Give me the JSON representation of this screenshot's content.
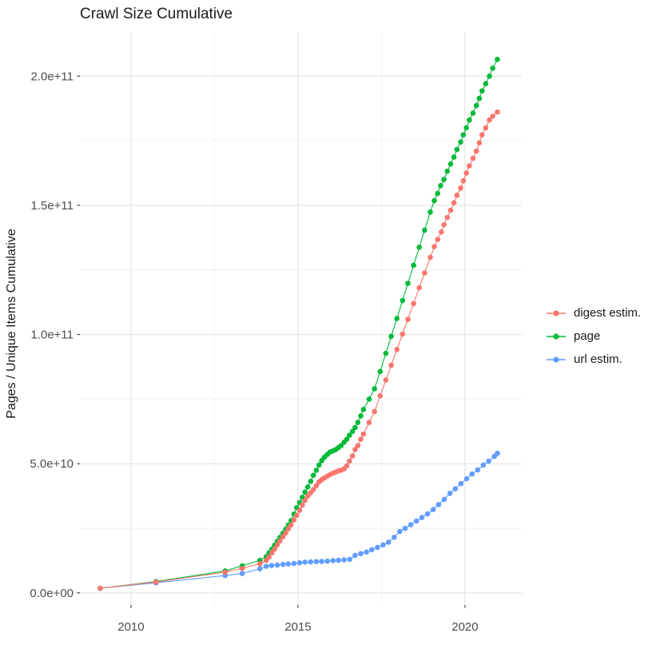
{
  "chart_data": {
    "type": "line",
    "title": "Crawl Size Cumulative",
    "xlabel": "",
    "ylabel": "Pages / Unique Items Cumulative",
    "legend_position": "right",
    "grid": true,
    "xlim": [
      2008.47,
      2021.7
    ],
    "ylim": [
      -4700000000,
      217100000000
    ],
    "x_ticks": [
      {
        "label": "2010",
        "value": 2010
      },
      {
        "label": "2015",
        "value": 2015
      },
      {
        "label": "2020",
        "value": 2020
      }
    ],
    "x_minor": [
      2012.5,
      2017.5
    ],
    "y_ticks": [
      {
        "label": "0.0e+00",
        "value": 0
      },
      {
        "label": "5.0e+10",
        "value": 50000000000.0
      },
      {
        "label": "1.0e+11",
        "value": 100000000000.0
      },
      {
        "label": "1.5e+11",
        "value": 150000000000.0
      },
      {
        "label": "2.0e+11",
        "value": 200000000000.0
      }
    ],
    "y_minor": [
      25000000000.0,
      75000000000.0,
      125000000000.0,
      175000000000.0
    ],
    "colors": {
      "grid_major": "#e4e4e4",
      "grid_minor": "#f0f0f0",
      "tick_mark": "#333333",
      "tick_label": "#4d4d4d",
      "text": "#1a1a1a"
    },
    "series": [
      {
        "name": "digest estim.",
        "color": "#F8766D",
        "points": [
          [
            2009.08,
            1800000000.0
          ],
          [
            2010.75,
            4200000000.0
          ],
          [
            2012.82,
            8000000000.0
          ],
          [
            2013.33,
            9500000000.0
          ],
          [
            2013.86,
            11300000000.0
          ],
          [
            2014.05,
            12600000000.0
          ],
          [
            2014.13,
            13900000000.0
          ],
          [
            2014.22,
            15500000000.0
          ],
          [
            2014.3,
            17000000000.0
          ],
          [
            2014.38,
            18600000000.0
          ],
          [
            2014.46,
            20100000000.0
          ],
          [
            2014.55,
            21700000000.0
          ],
          [
            2014.63,
            23200000000.0
          ],
          [
            2014.71,
            24800000000.0
          ],
          [
            2014.79,
            26300000000.0
          ],
          [
            2014.88,
            28200000000.0
          ],
          [
            2014.96,
            30000000000.0
          ],
          [
            2015.05,
            32000000000.0
          ],
          [
            2015.13,
            34000000000.0
          ],
          [
            2015.21,
            35800000000.0
          ],
          [
            2015.29,
            37500000000.0
          ],
          [
            2015.38,
            38800000000.0
          ],
          [
            2015.46,
            40000000000.0
          ],
          [
            2015.55,
            41500000000.0
          ],
          [
            2015.63,
            43000000000.0
          ],
          [
            2015.71,
            43800000000.0
          ],
          [
            2015.79,
            44500000000.0
          ],
          [
            2015.88,
            45200000000.0
          ],
          [
            2015.96,
            45800000000.0
          ],
          [
            2016.05,
            46300000000.0
          ],
          [
            2016.13,
            46800000000.0
          ],
          [
            2016.21,
            47200000000.0
          ],
          [
            2016.29,
            47500000000.0
          ],
          [
            2016.38,
            48000000000.0
          ],
          [
            2016.46,
            49200000000.0
          ],
          [
            2016.54,
            51000000000.0
          ],
          [
            2016.63,
            53000000000.0
          ],
          [
            2016.71,
            55500000000.0
          ],
          [
            2016.79,
            57000000000.0
          ],
          [
            2016.88,
            59500000000.0
          ],
          [
            2016.96,
            61500000000.0
          ],
          [
            2017.13,
            66000000000.0
          ],
          [
            2017.29,
            70200000000.0
          ],
          [
            2017.46,
            76300000000.0
          ],
          [
            2017.63,
            82400000000.0
          ],
          [
            2017.79,
            88100000000.0
          ],
          [
            2017.96,
            94200000000.0
          ],
          [
            2018.13,
            100200000000.0
          ],
          [
            2018.29,
            105900000000.0
          ],
          [
            2018.46,
            112000000000.0
          ],
          [
            2018.63,
            118100000000.0
          ],
          [
            2018.79,
            123800000000.0
          ],
          [
            2018.96,
            129900000000.0
          ],
          [
            2019.08,
            134000000000.0
          ],
          [
            2019.18,
            136800000000.0
          ],
          [
            2019.29,
            139700000000.0
          ],
          [
            2019.37,
            142500000000.0
          ],
          [
            2019.47,
            145300000000.0
          ],
          [
            2019.57,
            148100000000.0
          ],
          [
            2019.67,
            151000000000.0
          ],
          [
            2019.76,
            153900000000.0
          ],
          [
            2019.87,
            156700000000.0
          ],
          [
            2019.95,
            159500000000.0
          ],
          [
            2020.04,
            162500000000.0
          ],
          [
            2020.13,
            165300000000.0
          ],
          [
            2020.24,
            168200000000.0
          ],
          [
            2020.34,
            171000000000.0
          ],
          [
            2020.43,
            174200000000.0
          ],
          [
            2020.51,
            177300000000.0
          ],
          [
            2020.62,
            180000000000.0
          ],
          [
            2020.73,
            183000000000.0
          ],
          [
            2020.83,
            184500000000.0
          ],
          [
            2020.97,
            186100000000.0
          ]
        ]
      },
      {
        "name": "page",
        "color": "#00BA38",
        "points": [
          [
            2009.08,
            1800000000.0
          ],
          [
            2010.75,
            4400000000.0
          ],
          [
            2012.82,
            8500000000.0
          ],
          [
            2013.33,
            10500000000.0
          ],
          [
            2013.86,
            12600000000.0
          ],
          [
            2014.05,
            14000000000.0
          ],
          [
            2014.13,
            15500000000.0
          ],
          [
            2014.22,
            17000000000.0
          ],
          [
            2014.3,
            18500000000.0
          ],
          [
            2014.38,
            20000000000.0
          ],
          [
            2014.46,
            21500000000.0
          ],
          [
            2014.55,
            23100000000.0
          ],
          [
            2014.63,
            24700000000.0
          ],
          [
            2014.71,
            26300000000.0
          ],
          [
            2014.79,
            28000000000.0
          ],
          [
            2014.88,
            30500000000.0
          ],
          [
            2014.96,
            33000000000.0
          ],
          [
            2015.05,
            35000000000.0
          ],
          [
            2015.13,
            37000000000.0
          ],
          [
            2015.21,
            39000000000.0
          ],
          [
            2015.29,
            41000000000.0
          ],
          [
            2015.38,
            43200000000.0
          ],
          [
            2015.46,
            45500000000.0
          ],
          [
            2015.55,
            47500000000.0
          ],
          [
            2015.63,
            49500000000.0
          ],
          [
            2015.71,
            51200000000.0
          ],
          [
            2015.79,
            52500000000.0
          ],
          [
            2015.88,
            53600000000.0
          ],
          [
            2015.96,
            54500000000.0
          ],
          [
            2016.05,
            55000000000.0
          ],
          [
            2016.13,
            55500000000.0
          ],
          [
            2016.21,
            56200000000.0
          ],
          [
            2016.29,
            57000000000.0
          ],
          [
            2016.38,
            58300000000.0
          ],
          [
            2016.46,
            59500000000.0
          ],
          [
            2016.54,
            61000000000.0
          ],
          [
            2016.63,
            62500000000.0
          ],
          [
            2016.71,
            64000000000.0
          ],
          [
            2016.79,
            66000000000.0
          ],
          [
            2016.88,
            68500000000.0
          ],
          [
            2016.96,
            71000000000.0
          ],
          [
            2017.13,
            75000000000.0
          ],
          [
            2017.29,
            79000000000.0
          ],
          [
            2017.46,
            85700000000.0
          ],
          [
            2017.63,
            92700000000.0
          ],
          [
            2017.79,
            99300000000.0
          ],
          [
            2017.96,
            106200000000.0
          ],
          [
            2018.13,
            113200000000.0
          ],
          [
            2018.29,
            119800000000.0
          ],
          [
            2018.46,
            126800000000.0
          ],
          [
            2018.63,
            133800000000.0
          ],
          [
            2018.79,
            140400000000.0
          ],
          [
            2018.96,
            147400000000.0
          ],
          [
            2019.08,
            151800000000.0
          ],
          [
            2019.18,
            154600000000.0
          ],
          [
            2019.27,
            157600000000.0
          ],
          [
            2019.37,
            160000000000.0
          ],
          [
            2019.47,
            163200000000.0
          ],
          [
            2019.57,
            166000000000.0
          ],
          [
            2019.67,
            168700000000.0
          ],
          [
            2019.76,
            171600000000.0
          ],
          [
            2019.87,
            174500000000.0
          ],
          [
            2019.95,
            177300000000.0
          ],
          [
            2020.04,
            180000000000.0
          ],
          [
            2020.13,
            183000000000.0
          ],
          [
            2020.24,
            185700000000.0
          ],
          [
            2020.34,
            188600000000.0
          ],
          [
            2020.43,
            191400000000.0
          ],
          [
            2020.51,
            194300000000.0
          ],
          [
            2020.62,
            197100000000.0
          ],
          [
            2020.73,
            200000000000.0
          ],
          [
            2020.83,
            203100000000.0
          ],
          [
            2020.97,
            206500000000.0
          ]
        ]
      },
      {
        "name": "url estim.",
        "color": "#619CFF",
        "points": [
          [
            2009.08,
            1800000000.0
          ],
          [
            2010.75,
            3900000000.0
          ],
          [
            2012.82,
            6700000000.0
          ],
          [
            2013.33,
            7500000000.0
          ],
          [
            2013.86,
            9300000000.0
          ],
          [
            2014.05,
            10300000000.0
          ],
          [
            2014.21,
            10600000000.0
          ],
          [
            2014.38,
            10800000000.0
          ],
          [
            2014.55,
            11000000000.0
          ],
          [
            2014.71,
            11200000000.0
          ],
          [
            2014.88,
            11400000000.0
          ],
          [
            2015.05,
            11700000000.0
          ],
          [
            2015.21,
            11900000000.0
          ],
          [
            2015.38,
            12000000000.0
          ],
          [
            2015.55,
            12100000000.0
          ],
          [
            2015.71,
            12200000000.0
          ],
          [
            2015.88,
            12300000000.0
          ],
          [
            2016.05,
            12500000000.0
          ],
          [
            2016.21,
            12600000000.0
          ],
          [
            2016.38,
            12800000000.0
          ],
          [
            2016.55,
            13000000000.0
          ],
          [
            2016.71,
            14500000000.0
          ],
          [
            2016.88,
            15200000000.0
          ],
          [
            2017.05,
            15800000000.0
          ],
          [
            2017.21,
            16700000000.0
          ],
          [
            2017.38,
            17600000000.0
          ],
          [
            2017.55,
            18600000000.0
          ],
          [
            2017.71,
            19600000000.0
          ],
          [
            2017.88,
            21500000000.0
          ],
          [
            2018.05,
            23800000000.0
          ],
          [
            2018.21,
            25000000000.0
          ],
          [
            2018.38,
            26400000000.0
          ],
          [
            2018.55,
            27800000000.0
          ],
          [
            2018.71,
            29200000000.0
          ],
          [
            2018.88,
            30600000000.0
          ],
          [
            2019.05,
            32300000000.0
          ],
          [
            2019.21,
            34200000000.0
          ],
          [
            2019.38,
            36200000000.0
          ],
          [
            2019.55,
            38500000000.0
          ],
          [
            2019.71,
            40300000000.0
          ],
          [
            2019.88,
            42300000000.0
          ],
          [
            2020.05,
            44200000000.0
          ],
          [
            2020.21,
            46000000000.0
          ],
          [
            2020.38,
            47600000000.0
          ],
          [
            2020.55,
            49500000000.0
          ],
          [
            2020.71,
            51000000000.0
          ],
          [
            2020.88,
            52800000000.0
          ],
          [
            2020.97,
            54000000000.0
          ]
        ]
      }
    ]
  },
  "legend": {
    "items": [
      {
        "label": "digest estim."
      },
      {
        "label": "page"
      },
      {
        "label": "url estim."
      }
    ]
  }
}
